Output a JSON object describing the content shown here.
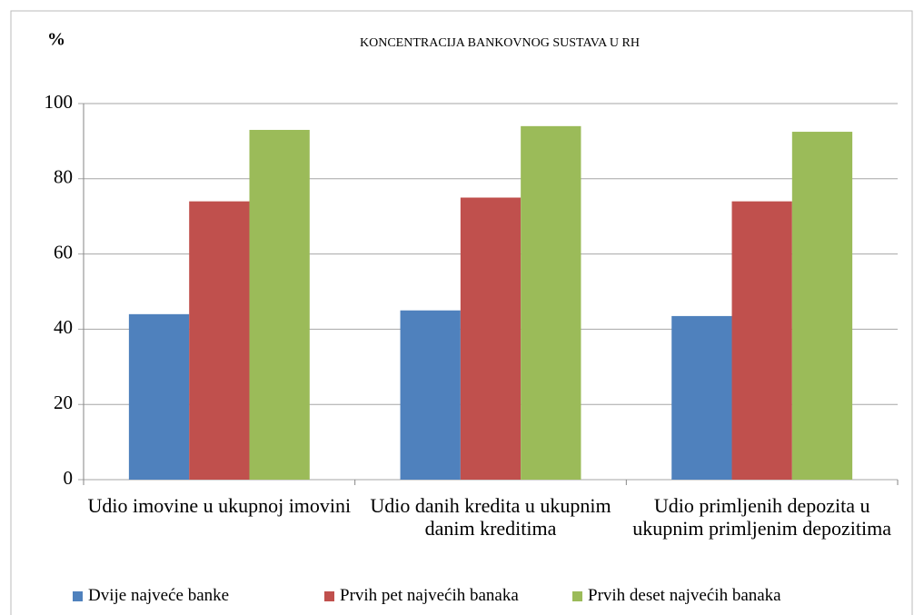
{
  "chart_data": {
    "type": "bar",
    "title": "KONCENTRACIJA BANKOVNOG SUSTAVA U RH",
    "y_label": "%",
    "categories": [
      "Udio imovine u ukupnoj imovini",
      "Udio danih kredita u ukupnim danim kreditima",
      "Udio primljenih depozita u ukupnim primljenim depozitima"
    ],
    "series": [
      {
        "name": "Dvije najveće banke",
        "color": "#4f81bd",
        "values": [
          44,
          45,
          43.5
        ]
      },
      {
        "name": "Prvih pet najvećih banaka",
        "color": "#c0504d",
        "values": [
          74,
          75,
          74
        ]
      },
      {
        "name": "Prvih deset najvećih banaka",
        "color": "#9bbb59",
        "values": [
          93,
          94,
          92.5
        ]
      }
    ],
    "ylim": [
      0,
      100
    ],
    "yticks": [
      0,
      20,
      40,
      60,
      80,
      100
    ],
    "grid": true,
    "legend": "bottom"
  }
}
